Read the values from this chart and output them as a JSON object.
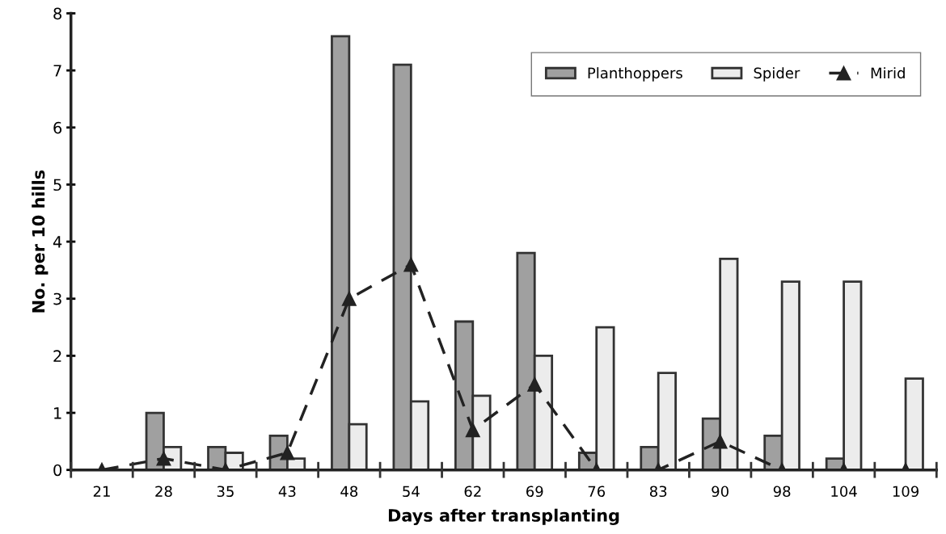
{
  "chart_data": {
    "type": "bar",
    "xlabel": "Days after transplanting",
    "ylabel": "No. per 10 hills",
    "categories": [
      "21",
      "28",
      "35",
      "43",
      "48",
      "54",
      "62",
      "69",
      "76",
      "83",
      "90",
      "98",
      "104",
      "109"
    ],
    "series": [
      {
        "name": "Planthoppers",
        "color": "#a0a0a0",
        "values": [
          0,
          1.0,
          0.4,
          0.6,
          7.6,
          7.1,
          2.6,
          3.8,
          0.3,
          0.4,
          0.9,
          0.6,
          0.2,
          0
        ]
      },
      {
        "name": "Spider",
        "color": "#ececec",
        "values": [
          0,
          0.4,
          0.3,
          0.2,
          0.8,
          1.2,
          1.3,
          2.0,
          2.5,
          1.7,
          3.7,
          3.3,
          3.3,
          1.6
        ]
      },
      {
        "name": "Mirid",
        "type": "line",
        "color": "#222222",
        "marker": "triangle",
        "line_style": "dashed",
        "values": [
          0,
          0.2,
          0,
          0.3,
          3.0,
          3.6,
          0.7,
          1.5,
          0,
          0,
          0.5,
          0,
          0,
          0
        ]
      }
    ],
    "ylim": [
      0,
      8
    ],
    "yticks": [
      0,
      1,
      2,
      3,
      4,
      5,
      6,
      7,
      8
    ],
    "grid": false,
    "legend": "top right"
  }
}
